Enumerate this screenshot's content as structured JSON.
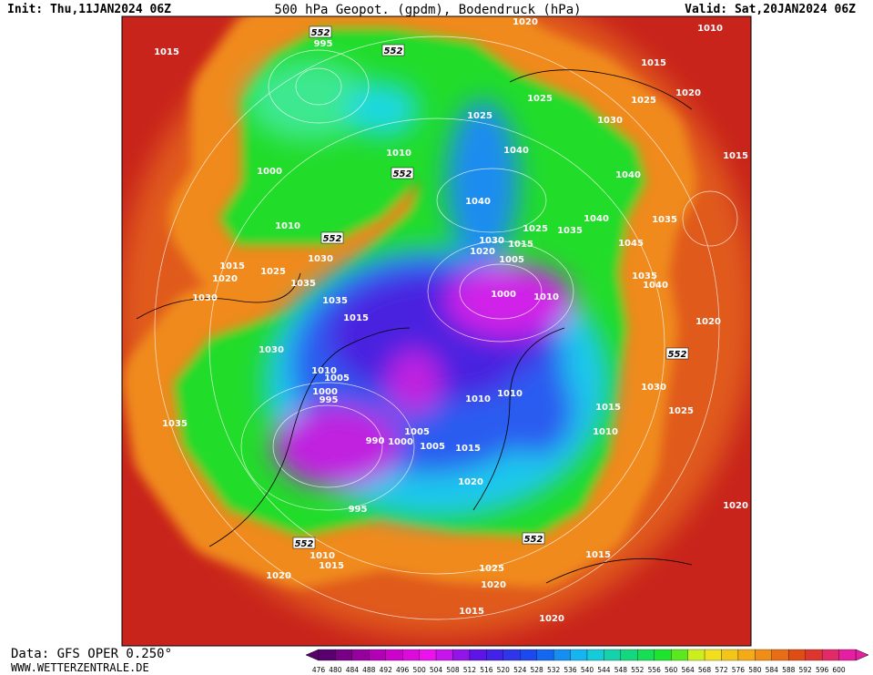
{
  "header": {
    "init": "Init: Thu,11JAN2024 06Z",
    "title": "500 hPa Geopot. (gpdm), Bodendruck (hPa)",
    "valid": "Valid: Sat,20JAN2024 06Z"
  },
  "footer": {
    "data": "Data: GFS OPER 0.250°",
    "site": "WWW.WETTERZENTRALE.DE"
  },
  "map": {
    "contour_labels": [
      552,
      995,
      552,
      1020,
      1010,
      1015,
      1015,
      1020,
      1025,
      1025,
      1025,
      1030,
      1040,
      1010,
      1015,
      1000,
      552,
      1040,
      1040,
      1010,
      552,
      1040,
      1035,
      1025,
      1035,
      1030,
      1015,
      1020,
      1045,
      1015,
      1030,
      1020,
      1025,
      1005,
      1035,
      1035,
      1040,
      1030,
      1035,
      1000,
      1010,
      1015,
      1020,
      1030,
      552,
      1010,
      1005,
      1000,
      995,
      1010,
      1010,
      1030,
      1025,
      1035,
      1015,
      1010,
      1005,
      990,
      1000,
      1005,
      1015,
      1020,
      995,
      1020,
      552,
      552,
      1010,
      1015,
      1015,
      1025,
      1020,
      1020,
      1015,
      1020
    ]
  },
  "colorbar": {
    "labels": [
      476,
      480,
      484,
      488,
      492,
      496,
      500,
      504,
      508,
      512,
      516,
      520,
      524,
      528,
      532,
      536,
      540,
      544,
      548,
      552,
      556,
      560,
      564,
      568,
      572,
      576,
      580,
      584,
      588,
      592,
      596,
      600
    ]
  }
}
